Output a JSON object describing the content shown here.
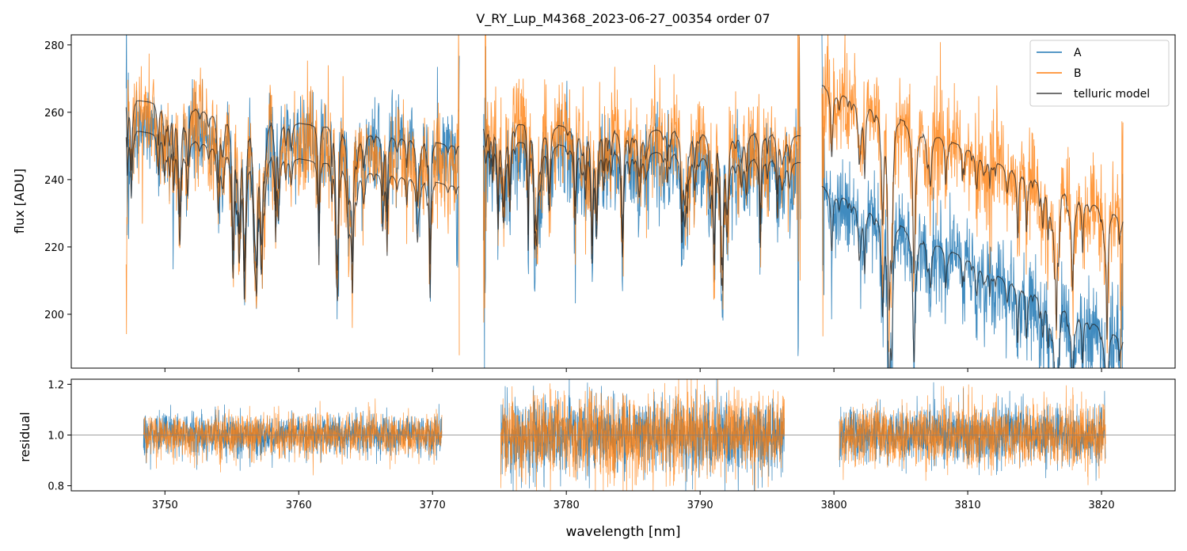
{
  "figure_title": "V_RY_Lup_M4368_2023-06-27_00354  order 07",
  "colors": {
    "A": "#1f77b4",
    "B": "#ff7f0e",
    "model": "#222222",
    "ref_line": "#808080"
  },
  "chart_data": [
    {
      "id": "flux_panel",
      "type": "line",
      "ylabel": "flux [ADU]",
      "xlim": [
        3743.0,
        3825.5
      ],
      "ylim": [
        184,
        283
      ],
      "yticks": [
        200,
        220,
        240,
        260,
        280
      ],
      "xticks": [
        3750,
        3760,
        3770,
        3780,
        3790,
        3800,
        3810,
        3820
      ],
      "legend": {
        "position": "top-right",
        "entries": [
          "A",
          "B",
          "telluric model"
        ]
      },
      "segments": [
        {
          "x_range": [
            3747.1,
            3772.0
          ],
          "A_level": [
            256,
            249
          ],
          "B_level": [
            260,
            244
          ],
          "model_A": [
            255,
            238
          ],
          "model_B": [
            264,
            250
          ]
        },
        {
          "x_range": [
            3773.8,
            3797.5
          ],
          "A_level": [
            251,
            244
          ],
          "B_level": [
            258,
            249
          ],
          "model_A": [
            252,
            245
          ],
          "model_B": [
            257,
            253
          ]
        },
        {
          "x_range": [
            3799.1,
            3821.6
          ],
          "A_level": [
            238,
            190
          ],
          "B_level": [
            268,
            228
          ],
          "model_A": [
            238,
            193
          ],
          "model_B": [
            268,
            229
          ]
        }
      ],
      "noise_sigma": {
        "A": 7,
        "B": 8
      }
    },
    {
      "id": "residual_panel",
      "type": "line",
      "ylabel": "residual",
      "xlabel": "wavelength [nm]",
      "xlim": [
        3743.0,
        3825.5
      ],
      "ylim": [
        0.78,
        1.22
      ],
      "yticks": [
        0.8,
        1.0,
        1.2
      ],
      "xticks": [
        3750,
        3760,
        3770,
        3780,
        3790,
        3800,
        3810,
        3820
      ],
      "reference_line": 1.0,
      "segments": [
        {
          "x_range": [
            3748.4,
            3770.7
          ],
          "sigma": 0.04
        },
        {
          "x_range": [
            3775.1,
            3796.3
          ],
          "sigma": 0.075
        },
        {
          "x_range": [
            3800.4,
            3820.3
          ],
          "sigma": 0.055
        }
      ]
    }
  ]
}
